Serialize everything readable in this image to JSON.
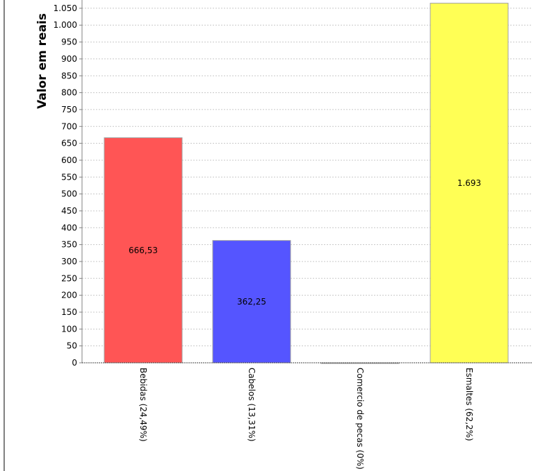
{
  "chart_data": {
    "type": "bar",
    "title": "",
    "xlabel": "",
    "ylabel": "Valor em reais",
    "ylim": [
      0,
      1065
    ],
    "yticks": [
      0,
      50,
      100,
      150,
      200,
      250,
      300,
      350,
      400,
      450,
      500,
      550,
      600,
      650,
      700,
      750,
      800,
      850,
      900,
      950,
      1000,
      1050
    ],
    "ytick_labels": [
      "0",
      "50",
      "100",
      "150",
      "200",
      "250",
      "300",
      "350",
      "400",
      "450",
      "500",
      "550",
      "600",
      "650",
      "700",
      "750",
      "800",
      "850",
      "900",
      "950",
      "1.000",
      "1.050"
    ],
    "grid": true,
    "categories": [
      "Bebidas (24,49%)",
      "Cabelos (13,31%)",
      "Comercio de pecas (0%)",
      "Esmaltes (62,2%)"
    ],
    "values": [
      666.53,
      362.25,
      0,
      1693
    ],
    "value_labels": [
      "666,53",
      "362,25",
      "",
      "1.693"
    ],
    "colors": [
      "#ff5555",
      "#5555ff",
      "#55ff55",
      "#ffff55"
    ]
  }
}
